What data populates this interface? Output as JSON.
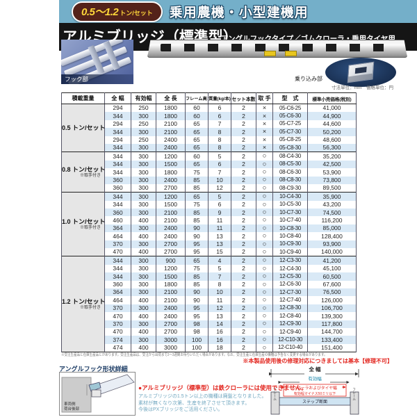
{
  "banner": {
    "badge_main": "0.5～1.2",
    "badge_unit": "トン/セット",
    "title": "乗用農機・小型建機用"
  },
  "header": {
    "product_title": "アルミブリッジ（標準型）",
    "product_subtitle": "アングルフックタイプ／ゴムクローラ・乗用タイヤ用"
  },
  "photos": {
    "hook_label": "フック部",
    "step_label": "乗り込み部",
    "units_note": "寸法単位：mm　価格単位：円"
  },
  "table": {
    "columns": [
      "積載重量",
      "全 幅",
      "有効幅",
      "全 長",
      "フレーム高さ",
      "質量(kg/本)",
      "セット本数",
      "取 手",
      "型　式",
      "標準小売価格(税別)"
    ],
    "groups": [
      {
        "label": "0.5 トン/セット",
        "note": "",
        "rows": [
          [
            "294",
            "250",
            "1800",
            "60",
            "6",
            "2",
            "×",
            "05-C6-25",
            "41,000"
          ],
          [
            "344",
            "300",
            "1800",
            "60",
            "6",
            "2",
            "×",
            "05-C6-30",
            "44,900"
          ],
          [
            "294",
            "250",
            "2100",
            "65",
            "7",
            "2",
            "×",
            "05-C7-25",
            "44,600"
          ],
          [
            "344",
            "300",
            "2100",
            "65",
            "8",
            "2",
            "×",
            "05-C7-30",
            "50,200"
          ],
          [
            "294",
            "250",
            "2400",
            "65",
            "8",
            "2",
            "×",
            "05-C8-25",
            "48,600"
          ],
          [
            "344",
            "300",
            "2400",
            "65",
            "8",
            "2",
            "×",
            "05-C8-30",
            "56,300"
          ]
        ]
      },
      {
        "label": "0.8 トン/セット",
        "note": "※取手付き",
        "rows": [
          [
            "344",
            "300",
            "1200",
            "60",
            "5",
            "2",
            "○",
            "08-C4-30",
            "35,200"
          ],
          [
            "344",
            "300",
            "1500",
            "65",
            "6",
            "2",
            "○",
            "08-C5-30",
            "42,500"
          ],
          [
            "344",
            "300",
            "1800",
            "75",
            "7",
            "2",
            "○",
            "08-C6-30",
            "53,900"
          ],
          [
            "360",
            "300",
            "2400",
            "85",
            "10",
            "2",
            "○",
            "08-C8-30",
            "73,800"
          ],
          [
            "360",
            "300",
            "2700",
            "85",
            "12",
            "2",
            "○",
            "08-C9-30",
            "89,500"
          ]
        ]
      },
      {
        "label": "1.0 トン/セット",
        "note": "※取手付き",
        "rows": [
          [
            "344",
            "300",
            "1200",
            "65",
            "5",
            "2",
            "○",
            "10-C4-30",
            "35,900"
          ],
          [
            "344",
            "300",
            "1500",
            "75",
            "6",
            "2",
            "○",
            "10-C5-30",
            "43,200"
          ],
          [
            "360",
            "300",
            "2100",
            "85",
            "9",
            "2",
            "○",
            "10-C7-30",
            "74,500"
          ],
          [
            "460",
            "400",
            "2100",
            "85",
            "11",
            "2",
            "○",
            "10-C7-40",
            "116,200"
          ],
          [
            "364",
            "300",
            "2400",
            "90",
            "11",
            "2",
            "○",
            "10-C8-30",
            "85,000"
          ],
          [
            "464",
            "400",
            "2400",
            "90",
            "13",
            "2",
            "○",
            "10-C8-40",
            "128,400"
          ],
          [
            "370",
            "300",
            "2700",
            "95",
            "13",
            "2",
            "○",
            "10-C9-30",
            "93,900"
          ],
          [
            "470",
            "400",
            "2700",
            "95",
            "15",
            "2",
            "○",
            "10-C9-40",
            "140,000"
          ]
        ]
      },
      {
        "label": "1.2 トン/セット",
        "note": "※取手付き",
        "rows": [
          [
            "344",
            "300",
            "900",
            "65",
            "4",
            "2",
            "○",
            "12-C3-30",
            "41,200"
          ],
          [
            "344",
            "300",
            "1200",
            "75",
            "5",
            "2",
            "○",
            "12-C4-30",
            "45,100"
          ],
          [
            "344",
            "300",
            "1500",
            "85",
            "7",
            "2",
            "○",
            "12-C5-30",
            "60,500"
          ],
          [
            "360",
            "300",
            "1800",
            "85",
            "8",
            "2",
            "○",
            "12-C6-30",
            "67,600"
          ],
          [
            "364",
            "300",
            "2100",
            "90",
            "10",
            "2",
            "○",
            "12-C7-30",
            "76,500"
          ],
          [
            "464",
            "400",
            "2100",
            "90",
            "11",
            "2",
            "○",
            "12-C7-40",
            "126,000"
          ],
          [
            "370",
            "300",
            "2400",
            "95",
            "12",
            "2",
            "○",
            "12-C8-30",
            "106,700"
          ],
          [
            "470",
            "400",
            "2400",
            "95",
            "13",
            "2",
            "○",
            "12-C8-40",
            "139,300"
          ],
          [
            "370",
            "300",
            "2700",
            "98",
            "14",
            "2",
            "○",
            "12-C9-30",
            "117,800"
          ],
          [
            "470",
            "400",
            "2700",
            "98",
            "16",
            "2",
            "○",
            "12-C9-40",
            "144,700"
          ],
          [
            "374",
            "300",
            "3000",
            "100",
            "16",
            "2",
            "○",
            "12-C10-30",
            "133,400"
          ],
          [
            "474",
            "400",
            "3000",
            "100",
            "18",
            "2",
            "○",
            "12-C10-40",
            "151,400"
          ]
        ]
      }
    ]
  },
  "footnotes": {
    "production_note": "※受注生産品と在庫生産品とがあります。受注生産品は、受注から出荷まで2～3週間お待ちいただく場合があります。なお、受注生産と在庫生産の機種は予告なく変更する場合があります。",
    "repair_note": "※本製品使用後の修理対応につきましては基本【修理不可】"
  },
  "hook_detail": {
    "title": "アングルフック形状詳細",
    "block_label_1": "車両側",
    "block_label_2": "荷台後部"
  },
  "notices": {
    "warning": "●アルミブリッジ（標準型）は鉄クローラには使用できません。",
    "info_lines": [
      "アルミブリッジの1.5トン以上の機種は廃盤となりました。",
      "素材が無くなり次第、生産を終了させて頂きます。",
      "今後はPXブリッジをご活用ください。"
    ]
  },
  "cross_section": {
    "full_width": "全 幅",
    "effective_width": "有効幅",
    "crawler_width": "クローラおよびタイヤ幅",
    "minus50": "有効幅マイナス50ミリ以下",
    "step": "ステップ断面",
    "frame": "フレーム"
  },
  "colors": {
    "banner_blue": "#74afc9",
    "badge_red": "#54221a",
    "badge_text": "#ffd83a",
    "stripe_blue": "#d9e9f6",
    "teal_value": "#1987ac",
    "alert_red": "#e2241d",
    "info_blue": "#6fa6bf",
    "heading_navy": "#1d3d66"
  }
}
